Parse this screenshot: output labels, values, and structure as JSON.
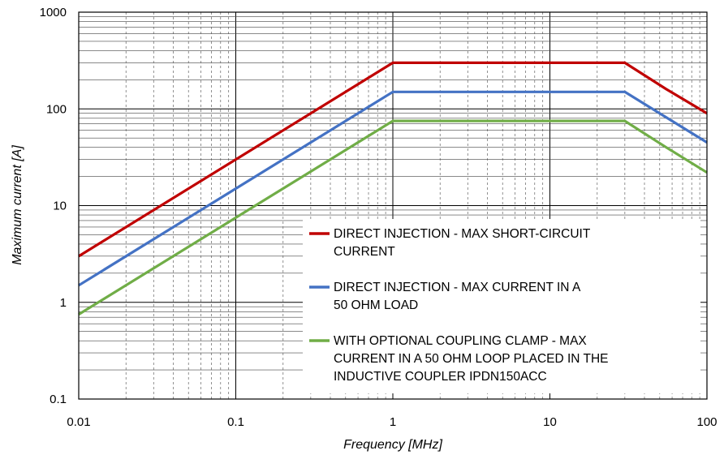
{
  "chart_data": {
    "type": "line",
    "xlabel": "Frequency [MHz]",
    "ylabel": "Maximum current  [A]",
    "xscale": "log",
    "yscale": "log",
    "xlim": [
      0.01,
      100
    ],
    "ylim": [
      0.1,
      1000
    ],
    "x_tick_labels": [
      "0.01",
      "0.1",
      "1",
      "10",
      "100"
    ],
    "y_tick_labels": [
      "0.1",
      "1",
      "10",
      "100",
      "1000"
    ],
    "grid": true,
    "legend_position": "bottom-right",
    "series": [
      {
        "name_lines": [
          "DIRECT INJECTION - MAX SHORT-CIRCUIT",
          "CURRENT"
        ],
        "color": "#c00000",
        "points": [
          [
            0.01,
            3
          ],
          [
            1,
            300
          ],
          [
            30,
            300
          ],
          [
            55,
            160
          ],
          [
            100,
            90
          ]
        ]
      },
      {
        "name_lines": [
          "DIRECT INJECTION - MAX CURRENT IN A",
          "50 OHM LOAD"
        ],
        "color": "#4472c4",
        "points": [
          [
            0.01,
            1.5
          ],
          [
            1,
            150
          ],
          [
            30,
            150
          ],
          [
            100,
            45
          ]
        ]
      },
      {
        "name_lines": [
          "WITH OPTIONAL COUPLING CLAMP - MAX",
          "CURRENT IN A 50 OHM LOOP PLACED IN THE",
          "INDUCTIVE COUPLER IPDN150ACC"
        ],
        "color": "#70ad47",
        "points": [
          [
            0.01,
            0.75
          ],
          [
            1,
            75
          ],
          [
            30,
            75
          ],
          [
            55,
            40
          ],
          [
            100,
            22
          ]
        ]
      }
    ]
  }
}
